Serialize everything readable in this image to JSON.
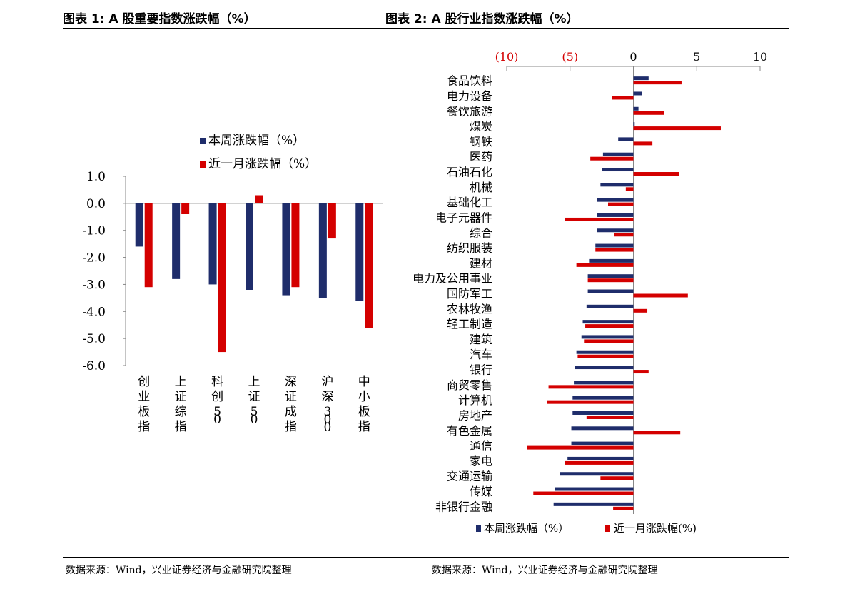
{
  "titles": {
    "left": "图表 1:  A 股重要指数涨跌幅（%）",
    "right": "图表 2:  A 股行业指数涨跌幅（%）"
  },
  "sources": {
    "left": "数据来源：Wind，兴业证券经济与金融研究院整理",
    "right": "数据来源：Wind，兴业证券经济与金融研究院整理"
  },
  "colors": {
    "week": "#1f2d6b",
    "month": "#d40000",
    "axis": "#888888",
    "neg_tick": "#d40000"
  },
  "chart_data": [
    {
      "type": "bar",
      "orientation": "vertical",
      "categories": [
        "创业板指",
        "上证综指",
        "科创50",
        "上证50",
        "深证成指",
        "沪深300",
        "中小板指"
      ],
      "series": [
        {
          "name": "本周涨跌幅（%）",
          "values": [
            -1.6,
            -2.8,
            -3.0,
            -3.2,
            -3.4,
            -3.5,
            -3.6
          ]
        },
        {
          "name": "近一月涨跌幅（%）",
          "values": [
            -3.1,
            -0.4,
            -5.5,
            0.3,
            -3.1,
            -1.3,
            -4.6
          ]
        }
      ],
      "yticks": [
        "1.0",
        "0.0",
        "-1.0",
        "-2.0",
        "-3.0",
        "-4.0",
        "-5.0",
        "-6.0"
      ],
      "ylim": [
        -6,
        1
      ],
      "legend_position": "top"
    },
    {
      "type": "bar",
      "orientation": "horizontal",
      "categories": [
        "食品饮料",
        "电力设备",
        "餐饮旅游",
        "煤炭",
        "钢铁",
        "医药",
        "石油石化",
        "机械",
        "基础化工",
        "电子元器件",
        "综合",
        "纺织服装",
        "建材",
        "电力及公用事业",
        "国防军工",
        "农林牧渔",
        "轻工制造",
        "建筑",
        "汽车",
        "银行",
        "商贸零售",
        "计算机",
        "房地产",
        "有色金属",
        "通信",
        "家电",
        "交通运输",
        "传媒",
        "非银行金融"
      ],
      "series": [
        {
          "name": "本周涨跌幅（%）",
          "values": [
            1.2,
            0.7,
            0.4,
            0.1,
            -1.2,
            -2.4,
            -2.5,
            -2.6,
            -2.9,
            -2.9,
            -2.9,
            -3.0,
            -3.5,
            -3.6,
            -3.6,
            -3.7,
            -4.0,
            -4.1,
            -4.5,
            -4.6,
            -4.7,
            -4.8,
            -4.8,
            -4.9,
            -4.9,
            -5.2,
            -5.8,
            -6.2,
            -6.3
          ]
        },
        {
          "name": "近一月涨跌幅",
          "values": [
            3.8,
            -1.7,
            2.4,
            6.9,
            1.5,
            -3.4,
            3.6,
            -0.6,
            -2.0,
            -5.4,
            -1.5,
            -3.0,
            -4.5,
            -3.6,
            4.3,
            1.1,
            -3.8,
            -3.9,
            -4.4,
            1.2,
            -6.7,
            -6.8,
            -3.7,
            3.7,
            -8.4,
            -5.4,
            -2.6,
            -7.9,
            -1.6
          ]
        }
      ],
      "xticks": [
        "(10)",
        "(5)",
        "0",
        "5",
        "10"
      ],
      "xlim": [
        -10,
        10
      ],
      "legend_position": "bottom",
      "legend_labels": [
        "本周涨跌幅（%）",
        "近一月涨跌幅(%)"
      ]
    }
  ]
}
